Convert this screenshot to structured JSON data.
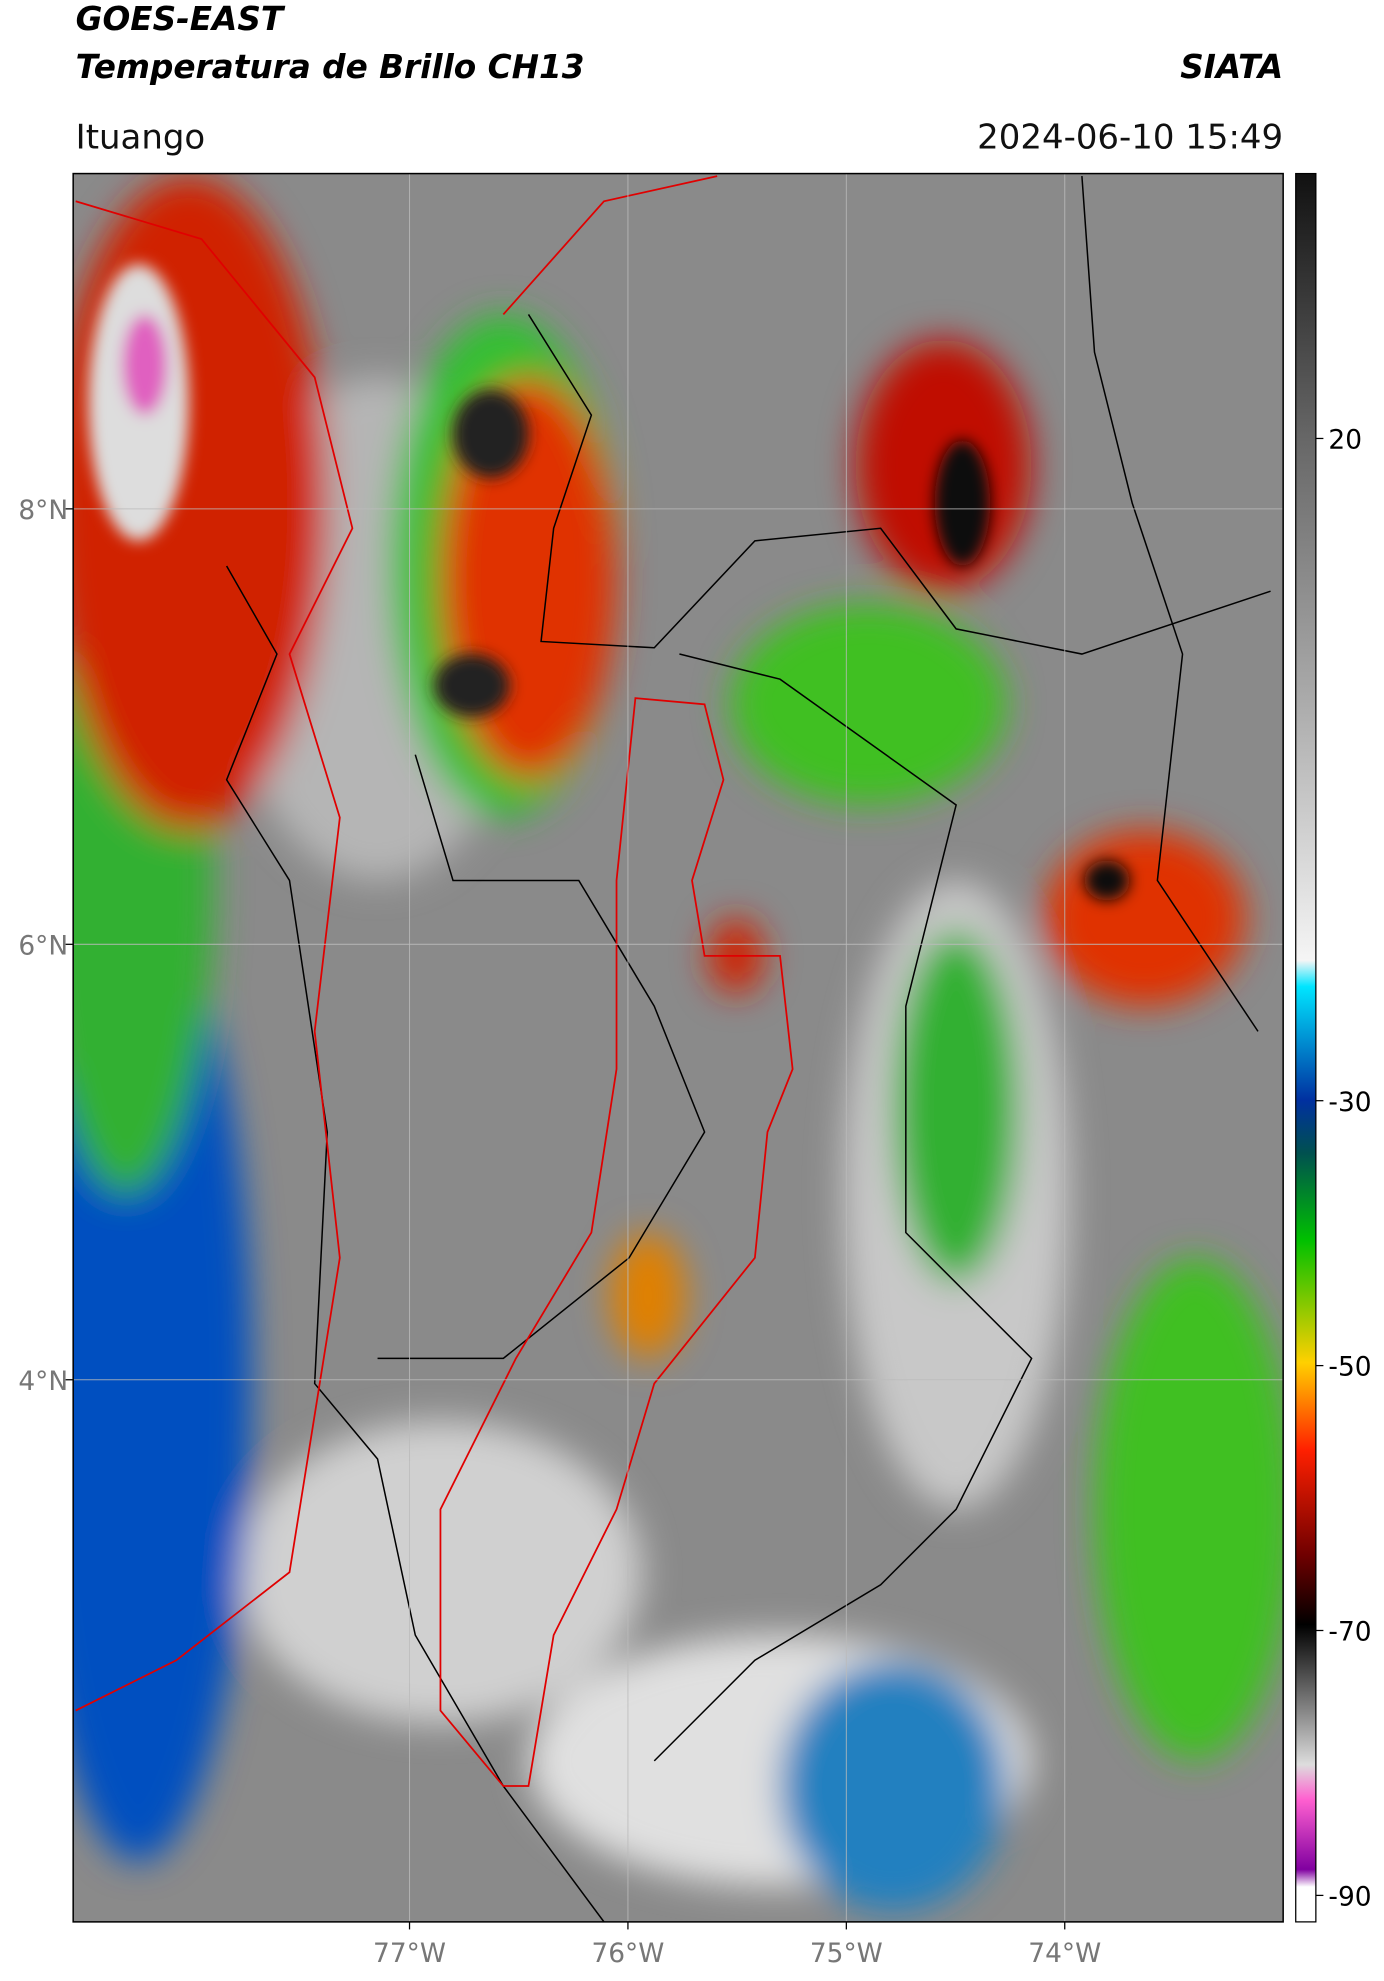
{
  "header": {
    "title": "GOES-EAST",
    "subtitle": "Temperatura de Brillo CH13",
    "agency": "SIATA",
    "region": "Ituango",
    "timestamp": "2024-06-10 15:49"
  },
  "map": {
    "lon_lim": [
      -78.54,
      -73.0
    ],
    "lat_lim": [
      1.51,
      9.54
    ],
    "lat_ticks": [
      {
        "value": 8,
        "label": "8°N"
      },
      {
        "value": 6,
        "label": "6°N"
      },
      {
        "value": 4,
        "label": "4°N"
      }
    ],
    "lon_ticks": [
      {
        "value": -77,
        "label": "77°W"
      },
      {
        "value": -76,
        "label": "76°W"
      },
      {
        "value": -75,
        "label": "75°W"
      },
      {
        "value": -74,
        "label": "74°W"
      }
    ],
    "grid": true
  },
  "colorbar": {
    "lim": [
      -92,
      40
    ],
    "ticks": [
      20,
      -30,
      -50,
      -70,
      -90
    ]
  }
}
